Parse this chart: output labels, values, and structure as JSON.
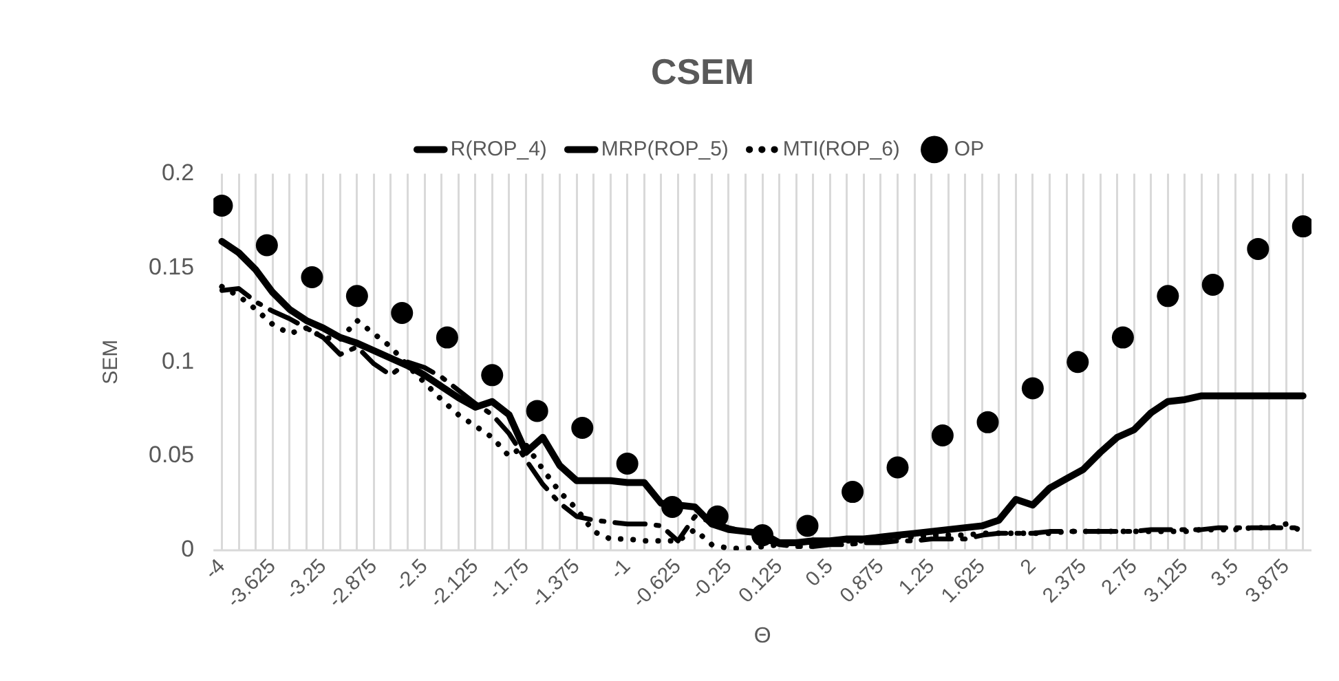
{
  "chart_data": {
    "type": "line",
    "title": "CSEM",
    "xlabel": "Θ",
    "ylabel": "SEM",
    "x": [
      -4,
      -3.875,
      -3.75,
      -3.625,
      -3.5,
      -3.375,
      -3.25,
      -3.125,
      -3,
      -2.875,
      -2.75,
      -2.625,
      -2.5,
      -2.375,
      -2.25,
      -2.125,
      -2,
      -1.875,
      -1.75,
      -1.625,
      -1.5,
      -1.375,
      -1.25,
      -1.125,
      -1,
      -0.875,
      -0.75,
      -0.625,
      -0.5,
      -0.375,
      -0.25,
      -0.125,
      0,
      0.125,
      0.25,
      0.375,
      0.5,
      0.625,
      0.75,
      0.875,
      1,
      1.125,
      1.25,
      1.375,
      1.5,
      1.625,
      1.75,
      1.875,
      2,
      2.125,
      2.25,
      2.375,
      2.5,
      2.625,
      2.75,
      2.875,
      3,
      3.125,
      3.25,
      3.375,
      3.5,
      3.625,
      3.75,
      3.875,
      4
    ],
    "xlim": [
      -4.0625,
      4.0625
    ],
    "xticks": [
      -4,
      {
        "value": -3.875,
        "label": null
      },
      {
        "value": -3.75,
        "label": null
      },
      -3.625,
      {
        "value": -3.5,
        "label": null
      },
      {
        "value": -3.375,
        "label": null
      },
      -3.25,
      {
        "value": -3.125,
        "label": null
      },
      {
        "value": -3,
        "label": null
      },
      -2.875,
      {
        "value": -2.75,
        "label": null
      },
      {
        "value": -2.625,
        "label": null
      },
      -2.5,
      {
        "value": -2.375,
        "label": null
      },
      {
        "value": -2.25,
        "label": null
      },
      -2.125,
      {
        "value": -2,
        "label": null
      },
      {
        "value": -1.875,
        "label": null
      },
      -1.75,
      {
        "value": -1.625,
        "label": null
      },
      {
        "value": -1.5,
        "label": null
      },
      -1.375,
      {
        "value": -1.25,
        "label": null
      },
      {
        "value": -1.125,
        "label": null
      },
      -1,
      {
        "value": -0.875,
        "label": null
      },
      {
        "value": -0.75,
        "label": null
      },
      -0.625,
      {
        "value": -0.5,
        "label": null
      },
      {
        "value": -0.375,
        "label": null
      },
      -0.25,
      {
        "value": -0.125,
        "label": null
      },
      {
        "value": 0,
        "label": null
      },
      0.125,
      {
        "value": 0.25,
        "label": null
      },
      {
        "value": 0.375,
        "label": null
      },
      0.5,
      {
        "value": 0.625,
        "label": null
      },
      {
        "value": 0.75,
        "label": null
      },
      0.875,
      {
        "value": 1,
        "label": null
      },
      {
        "value": 1.125,
        "label": null
      },
      1.25,
      {
        "value": 1.375,
        "label": null
      },
      {
        "value": 1.5,
        "label": null
      },
      1.625,
      {
        "value": 1.75,
        "label": null
      },
      {
        "value": 1.875,
        "label": null
      },
      2,
      {
        "value": 2.125,
        "label": null
      },
      {
        "value": 2.25,
        "label": null
      },
      2.375,
      {
        "value": 2.5,
        "label": null
      },
      {
        "value": 2.625,
        "label": null
      },
      2.75,
      {
        "value": 2.875,
        "label": null
      },
      {
        "value": 3,
        "label": null
      },
      3.125,
      {
        "value": 3.25,
        "label": null
      },
      {
        "value": 3.375,
        "label": null
      },
      3.5,
      {
        "value": 3.625,
        "label": null
      },
      {
        "value": 3.75,
        "label": null
      },
      3.875,
      {
        "value": 4,
        "label": null
      }
    ],
    "ylim": [
      0,
      0.2
    ],
    "yticks": [
      0,
      0.05,
      0.1,
      0.15,
      0.2
    ],
    "grid": "x",
    "legend": "top",
    "series": [
      {
        "name": "R(ROP_4)",
        "line_style": "solid",
        "color": "#000000",
        "values": [
          0.164,
          0.158,
          0.149,
          0.137,
          0.128,
          0.122,
          0.118,
          0.113,
          0.11,
          0.106,
          0.102,
          0.098,
          0.093,
          0.087,
          0.081,
          0.076,
          0.079,
          0.072,
          0.052,
          0.06,
          0.045,
          0.037,
          0.037,
          0.037,
          0.036,
          0.036,
          0.025,
          0.024,
          0.023,
          0.014,
          0.011,
          0.01,
          0.009,
          0.004,
          0.004,
          0.005,
          0.005,
          0.006,
          0.006,
          0.007,
          0.008,
          0.009,
          0.01,
          0.011,
          0.012,
          0.013,
          0.016,
          0.027,
          0.024,
          0.033,
          0.038,
          0.043,
          0.052,
          0.06,
          0.064,
          0.073,
          0.079,
          0.08,
          0.082,
          0.082,
          0.082,
          0.082,
          0.082,
          0.082,
          0.082
        ]
      },
      {
        "name": "MRP(ROP_5)",
        "line_style": "dashed",
        "color": "#000000",
        "values": [
          0.138,
          0.139,
          0.132,
          0.127,
          0.123,
          0.118,
          0.113,
          0.104,
          0.108,
          0.099,
          0.093,
          0.1,
          0.097,
          0.092,
          0.085,
          0.078,
          0.072,
          0.062,
          0.048,
          0.035,
          0.025,
          0.018,
          0.016,
          0.015,
          0.014,
          0.014,
          0.013,
          0.005,
          0.018,
          0.015,
          0.012,
          0.01,
          0.006,
          0.003,
          0.002,
          0.002,
          0.003,
          0.003,
          0.004,
          0.004,
          0.005,
          0.005,
          0.006,
          0.006,
          0.006,
          0.008,
          0.009,
          0.009,
          0.009,
          0.01,
          0.01,
          0.01,
          0.01,
          0.01,
          0.01,
          0.011,
          0.011,
          0.011,
          0.011,
          0.012,
          0.012,
          0.012,
          0.012,
          0.012,
          0.012
        ]
      },
      {
        "name": "MTI(ROP_6)",
        "line_style": "dotted",
        "color": "#000000",
        "values": [
          0.14,
          0.135,
          0.128,
          0.12,
          0.115,
          0.118,
          0.113,
          0.112,
          0.122,
          0.115,
          0.108,
          0.098,
          0.089,
          0.08,
          0.072,
          0.066,
          0.06,
          0.05,
          0.056,
          0.043,
          0.031,
          0.022,
          0.01,
          0.006,
          0.006,
          0.005,
          0.005,
          0.005,
          0.011,
          0.003,
          0.001,
          0.001,
          0.002,
          0.003,
          0.003,
          0.004,
          0.004,
          0.005,
          0.005,
          0.006,
          0.007,
          0.007,
          0.008,
          0.008,
          0.008,
          0.009,
          0.009,
          0.009,
          0.009,
          0.009,
          0.01,
          0.01,
          0.01,
          0.01,
          0.01,
          0.01,
          0.01,
          0.01,
          0.011,
          0.011,
          0.011,
          0.012,
          0.012,
          0.014,
          0.01
        ]
      },
      {
        "name": "OP",
        "type": "scatter",
        "marker": "circle",
        "color": "#000000",
        "x": [
          -4,
          -3.667,
          -3.333,
          -3,
          -2.667,
          -2.333,
          -2,
          -1.667,
          -1.333,
          -1,
          -0.667,
          -0.333,
          0,
          0.333,
          0.667,
          1,
          1.333,
          1.667,
          2,
          2.333,
          2.667,
          3,
          3.333,
          3.667,
          4
        ],
        "values": [
          0.183,
          0.162,
          0.145,
          0.135,
          0.126,
          0.113,
          0.093,
          0.074,
          0.065,
          0.046,
          0.023,
          0.018,
          0.008,
          0.013,
          0.031,
          0.044,
          0.061,
          0.068,
          0.086,
          0.1,
          0.113,
          0.135,
          0.141,
          0.16,
          0.172
        ]
      }
    ]
  }
}
